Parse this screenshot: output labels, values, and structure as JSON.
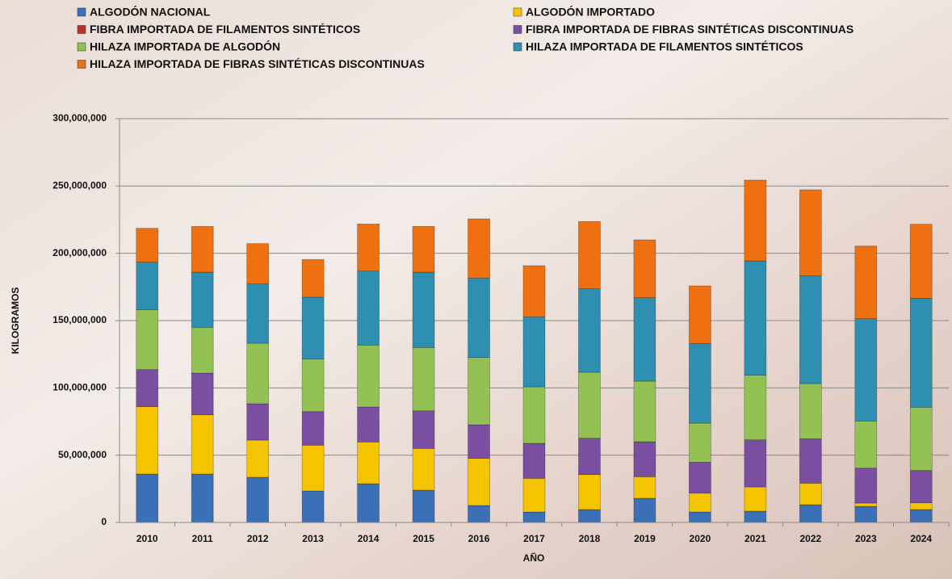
{
  "chart_data": {
    "type": "bar",
    "stacked": true,
    "x_label": "AÑO",
    "y_label": "KILOGRAMOS",
    "categories": [
      "2010",
      "2011",
      "2012",
      "2013",
      "2014",
      "2015",
      "2016",
      "2017",
      "2018",
      "2019",
      "2020",
      "2021",
      "2022",
      "2023",
      "2024"
    ],
    "series": [
      {
        "name": "ALGODÓN NACIONAL",
        "color": "#3b6fb6",
        "values": [
          36000000,
          36000000,
          33600000,
          23400000,
          28800000,
          24000000,
          12600000,
          7800000,
          9600000,
          18000000,
          7800000,
          8400000,
          13200000,
          12000000,
          9600000
        ]
      },
      {
        "name": "ALGODÓN IMPORTADO",
        "color": "#f5c400",
        "values": [
          50000000,
          44000000,
          27600000,
          34000000,
          31000000,
          31000000,
          35000000,
          25000000,
          26000000,
          16000000,
          14000000,
          18000000,
          16000000,
          2400000,
          5000000
        ]
      },
      {
        "name": "FIBRA IMPORTADA DE FILAMENTOS SINTÉTICOS",
        "color": "#b5322f",
        "values": [
          0,
          0,
          0,
          0,
          0,
          0,
          0,
          0,
          0,
          0,
          0,
          0,
          0,
          0,
          0
        ]
      },
      {
        "name": "FIBRA IMPORTADA DE FIBRAS SINTÉTICAS  DISCONTINUAS",
        "color": "#7a4ea0",
        "values": [
          27600000,
          31000000,
          27000000,
          25000000,
          26000000,
          28000000,
          25000000,
          26000000,
          27000000,
          26000000,
          23000000,
          35000000,
          33000000,
          26000000,
          24000000
        ]
      },
      {
        "name": "HILAZA IMPORTADA DE ALGODÓN",
        "color": "#93c153",
        "values": [
          44400000,
          34000000,
          45000000,
          39000000,
          46000000,
          47000000,
          50000000,
          42000000,
          49000000,
          45000000,
          29000000,
          48000000,
          41000000,
          35000000,
          47000000
        ]
      },
      {
        "name": "HILAZA IMPORTADA DE FILAMENTOS SINTÉTICOS",
        "color": "#2e8fb0",
        "values": [
          35400000,
          41000000,
          44000000,
          46000000,
          55000000,
          56000000,
          59000000,
          52000000,
          62000000,
          62000000,
          59000000,
          85000000,
          80000000,
          76000000,
          81000000
        ]
      },
      {
        "name": "HILAZA IMPORTADA DE FIBRAS SINTÉTICAS  DISCONTINUAS",
        "color": "#ee7010",
        "values": [
          25200000,
          34000000,
          30000000,
          28000000,
          35000000,
          34000000,
          44000000,
          38000000,
          50000000,
          43000000,
          43000000,
          60000000,
          64000000,
          54000000,
          55000000
        ]
      }
    ],
    "ylim": [
      0,
      300000000
    ],
    "yticks": [
      0,
      {
        "value": 50000000,
        "label": "50,000,000"
      },
      {
        "value": 100000000,
        "label": "100,000,000"
      },
      {
        "value": 150000000,
        "label": "150,000,000"
      },
      {
        "value": 200000000,
        "label": "200,000,000"
      },
      {
        "value": 250000000,
        "label": "250,000,000"
      },
      {
        "value": 300000000,
        "label": "300,000,000"
      }
    ],
    "grid": true
  }
}
